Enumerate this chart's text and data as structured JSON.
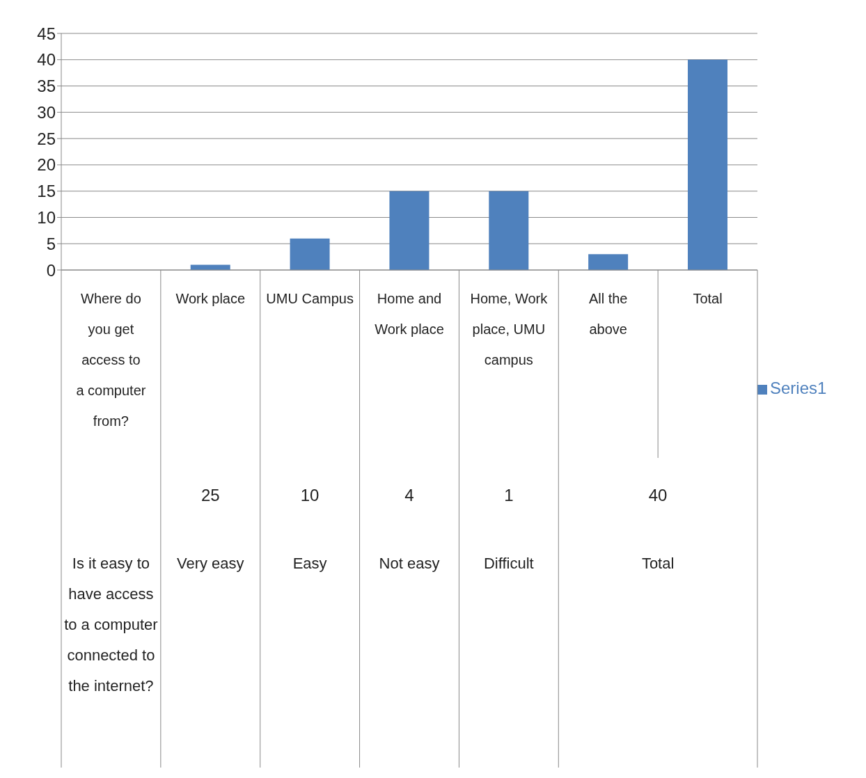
{
  "chart_data": {
    "type": "bar",
    "categories": [
      "Where do you get access to a computer from?",
      "Work place",
      "UMU Campus",
      "Home and Work place",
      "Home, Work place, UMU campus",
      "All the above",
      "Total"
    ],
    "series": [
      {
        "name": "Series1",
        "color": "#4f81bd",
        "values": [
          0,
          1,
          6,
          15,
          15,
          3,
          40
        ]
      }
    ],
    "ylim": [
      0,
      45
    ],
    "yticks": [
      0,
      5,
      10,
      15,
      20,
      25,
      30,
      35,
      40,
      45
    ],
    "grid": "y",
    "legend": "right",
    "annotations": [
      "25",
      "10",
      "4",
      "1",
      "40",
      "Is it easy to have access to a computer connected to the internet?",
      "Very easy",
      "Easy",
      "Not easy",
      "Difficult",
      "Total"
    ]
  }
}
